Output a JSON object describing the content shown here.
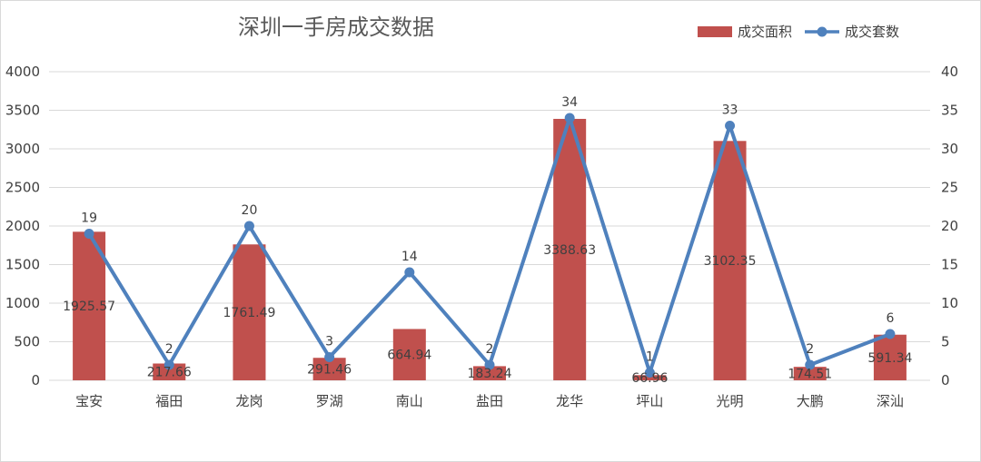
{
  "chart_data": {
    "type": "bar",
    "title": "深圳一手房成交数据",
    "categories": [
      "宝安",
      "福田",
      "龙岗",
      "罗湖",
      "南山",
      "盐田",
      "龙华",
      "坪山",
      "光明",
      "大鹏",
      "深汕"
    ],
    "series": [
      {
        "name": "成交面积",
        "type": "bar",
        "axis": "left",
        "color": "#C0504D",
        "values": [
          1925.57,
          217.66,
          1761.49,
          291.46,
          664.94,
          183.24,
          3388.63,
          66.96,
          3102.35,
          174.51,
          591.34
        ],
        "labels": [
          "1925.57",
          "217.66",
          "1761.49",
          "291.46",
          "664.94",
          "183.24",
          "3388.63",
          "66.96",
          "3102.35",
          "174.51",
          "591.34"
        ]
      },
      {
        "name": "成交套数",
        "type": "line",
        "axis": "right",
        "color": "#4F81BD",
        "values": [
          19,
          2,
          20,
          3,
          14,
          2,
          34,
          1,
          33,
          2,
          6
        ],
        "labels": [
          "19",
          "2",
          "20",
          "3",
          "14",
          "2",
          "34",
          "1",
          "33",
          "2",
          "6"
        ]
      }
    ],
    "y_left": {
      "range": [
        0,
        4000
      ],
      "ticks": [
        "0",
        "500",
        "1000",
        "1500",
        "2000",
        "2500",
        "3000",
        "3500",
        "4000"
      ]
    },
    "y_right": {
      "range": [
        0,
        40
      ],
      "ticks": [
        "0",
        "5",
        "10",
        "15",
        "20",
        "25",
        "30",
        "35",
        "40"
      ]
    },
    "grid": true,
    "legend": "top-right"
  }
}
